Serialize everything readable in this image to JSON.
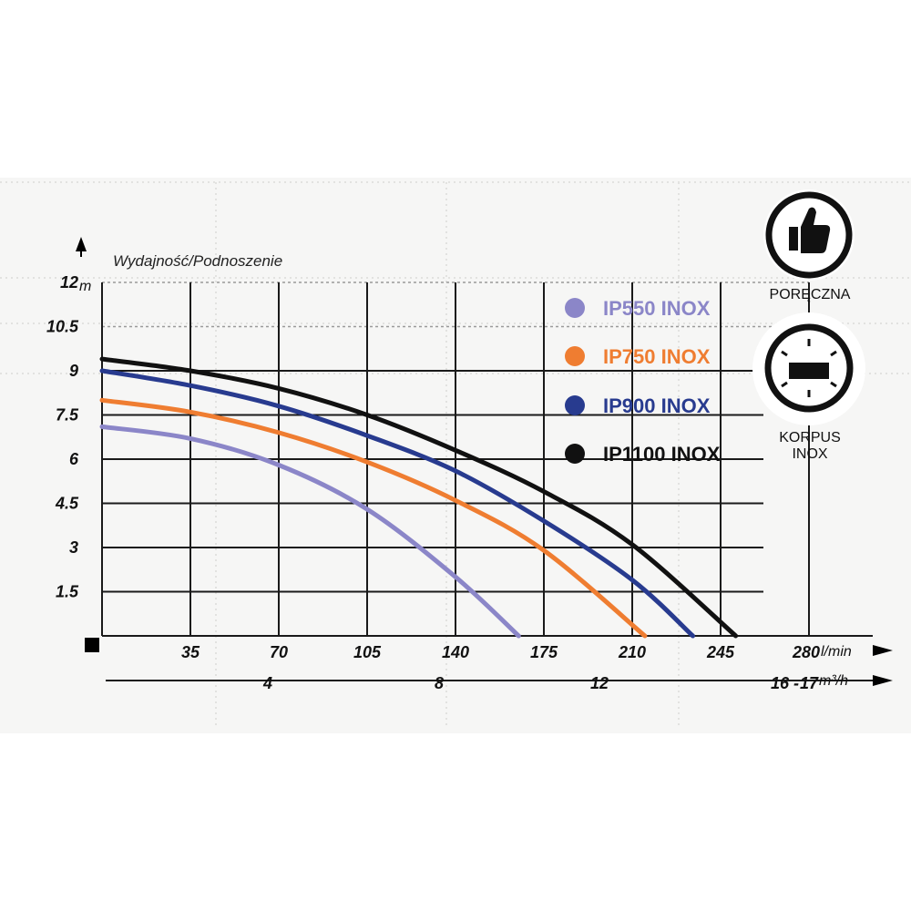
{
  "chart_data": {
    "type": "line",
    "title": "Wydajność/Podnoszenie",
    "ylabel_unit": "m",
    "xlabel_unit": "l/min",
    "x2label_unit": "m³/h",
    "ylim": [
      0,
      12
    ],
    "xlim": [
      0,
      280
    ],
    "y_ticks": [
      {
        "value": 1.5,
        "label": "1.5"
      },
      {
        "value": 3,
        "label": "3"
      },
      {
        "value": 4.5,
        "label": "4.5"
      },
      {
        "value": 6,
        "label": "6"
      },
      {
        "value": 7.5,
        "label": "7.5"
      },
      {
        "value": 9,
        "label": "9"
      },
      {
        "value": 10.5,
        "label": "10.5"
      },
      {
        "value": 12,
        "label": "12"
      }
    ],
    "x_ticks": [
      {
        "value": 35,
        "label": "35"
      },
      {
        "value": 70,
        "label": "70"
      },
      {
        "value": 105,
        "label": "105"
      },
      {
        "value": 140,
        "label": "140"
      },
      {
        "value": 175,
        "label": "175"
      },
      {
        "value": 210,
        "label": "210"
      },
      {
        "value": 245,
        "label": "245"
      },
      {
        "value": 280,
        "label": "280"
      }
    ],
    "x2_ticks": [
      {
        "value": 4,
        "label": "4"
      },
      {
        "value": 8,
        "label": "8"
      },
      {
        "value": 12,
        "label": "12"
      },
      {
        "value": 16,
        "label": "16 -"
      },
      {
        "value": 17,
        "label": "17"
      }
    ],
    "series": [
      {
        "name": "IP550 INOX",
        "color": "#8b86c8",
        "x": [
          0,
          35,
          70,
          105,
          140,
          165
        ],
        "y": [
          7.1,
          6.7,
          5.8,
          4.3,
          2.0,
          0
        ]
      },
      {
        "name": "IP750 INOX",
        "color": "#ef7d31",
        "x": [
          0,
          35,
          70,
          105,
          140,
          175,
          215
        ],
        "y": [
          8.0,
          7.6,
          6.9,
          5.9,
          4.6,
          2.9,
          0
        ]
      },
      {
        "name": "IP900 INOX",
        "color": "#283b8f",
        "x": [
          0,
          35,
          70,
          105,
          140,
          175,
          210,
          234
        ],
        "y": [
          9.0,
          8.5,
          7.8,
          6.8,
          5.6,
          3.9,
          1.9,
          0
        ]
      },
      {
        "name": "IP1100 INOX",
        "color": "#111111",
        "x": [
          0,
          35,
          70,
          105,
          140,
          175,
          210,
          251
        ],
        "y": [
          9.4,
          9.0,
          8.4,
          7.5,
          6.3,
          4.9,
          3.1,
          0
        ]
      }
    ],
    "badges": [
      {
        "icon": "thumbs-up-icon",
        "label": "PORĘCZNA"
      },
      {
        "icon": "stainless-body-icon",
        "label": "KORPUS INOX"
      }
    ]
  }
}
